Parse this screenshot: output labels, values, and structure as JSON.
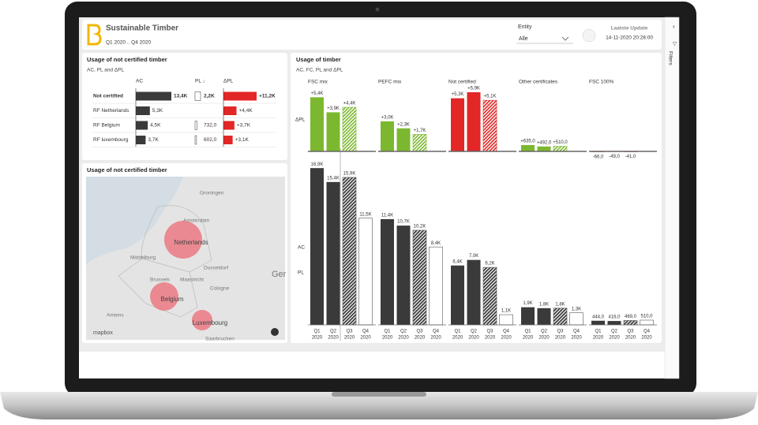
{
  "header": {
    "title": "Sustainable Timber",
    "period": "Q1 2020 .. Q4 2020",
    "entity_label": "Entity",
    "entity_value": "Alle",
    "update_label": "Laatste Update",
    "update_value": "14-11-2020 20:28:00",
    "filters": "Filters"
  },
  "table": {
    "title": "Usage of not certified timber",
    "subtitle": "AC, PL and ΔPL",
    "columns": [
      "AC",
      "PL ↓",
      "ΔPL"
    ],
    "rows": [
      {
        "name": "Not certified",
        "ac": 13400,
        "ac_label": "13,4K",
        "pl": 2200,
        "pl_label": "2,2K",
        "dpl": 11200,
        "dpl_label": "+11,2K"
      },
      {
        "name": "RF Netherlands",
        "ac": 5300,
        "ac_label": "5,3K",
        "pl": null,
        "dpl": 4400,
        "dpl_label": "+4,4K"
      },
      {
        "name": "RF Belgium",
        "ac": 4500,
        "ac_label": "4,5K",
        "pl": 732,
        "pl_label": "732,0",
        "dpl": 3700,
        "dpl_label": "+3,7K"
      },
      {
        "name": "RF luxembourg",
        "ac": 3700,
        "ac_label": "3,7K",
        "pl": 602,
        "pl_label": "602,0",
        "dpl": 3100,
        "dpl_label": "+3,1K"
      }
    ]
  },
  "map": {
    "title": "Usage of not certified timber",
    "regions": [
      "Netherlands",
      "Belgium",
      "Luxembourg"
    ],
    "places": [
      "Groningen",
      "Amsterdam",
      "Middelburg",
      "Brussels",
      "Maastricht",
      "Dusseldorf",
      "Cologne",
      "Amiens",
      "Saarbrucken",
      "Ger"
    ],
    "credit": "mapbox"
  },
  "timber": {
    "title": "Usage of timber",
    "subtitle": "AC, FC, PL and ΔPL",
    "row_labels": [
      "ΔPL",
      "AC",
      "PL"
    ],
    "quarters": [
      "Q1",
      "Q2",
      "Q3",
      "Q4"
    ],
    "year": "2020",
    "groups": [
      {
        "name": "FSC mix",
        "color": "#7cb82f",
        "values": [
          16900,
          15400,
          15900,
          11500
        ],
        "value_labels": [
          "16,9K",
          "15,4K",
          "15,9K",
          "11,5K"
        ],
        "dpl": [
          5400,
          3900,
          4400,
          null
        ],
        "dpl_labels": [
          "+5,4K",
          "+3,9K",
          "+4,4K",
          null
        ]
      },
      {
        "name": "PEFC mix",
        "color": "#7cb82f",
        "values": [
          11400,
          10700,
          10200,
          8400
        ],
        "value_labels": [
          "11,4K",
          "10,7K",
          "10,2K",
          "8,4K"
        ],
        "dpl": [
          3000,
          2300,
          1700,
          null
        ],
        "dpl_labels": [
          "+3,0K",
          "+2,3K",
          "+1,7K",
          null
        ]
      },
      {
        "name": "Not certified",
        "color": "#e32626",
        "values": [
          6400,
          7000,
          6200,
          1100
        ],
        "value_labels": [
          "6,4K",
          "7,0K",
          "6,2K",
          "1,1K"
        ],
        "dpl": [
          5300,
          5900,
          5100,
          null
        ],
        "dpl_labels": [
          "+5,3K",
          "+5,9K",
          "+5,1K",
          null
        ]
      },
      {
        "name": "Other certificates",
        "color": "#7cb82f",
        "values": [
          1900,
          1800,
          1800,
          1300
        ],
        "value_labels": [
          "1,9K",
          "1,8K",
          "1,8K",
          "1,3K"
        ],
        "dpl": [
          635,
          492,
          510,
          null
        ],
        "dpl_labels": [
          "+635,0",
          "+492,0",
          "+510,0",
          null
        ]
      },
      {
        "name": "FSC 100%",
        "color": "#d43a2a",
        "values": [
          444,
          416,
          469,
          510
        ],
        "value_labels": [
          "444,0",
          "416,0",
          "469,0",
          "510,0"
        ],
        "dpl": [
          -66,
          -49,
          -41,
          null
        ],
        "dpl_labels": [
          "-66,0",
          "-49,0",
          "-41,0",
          null
        ]
      }
    ]
  }
}
